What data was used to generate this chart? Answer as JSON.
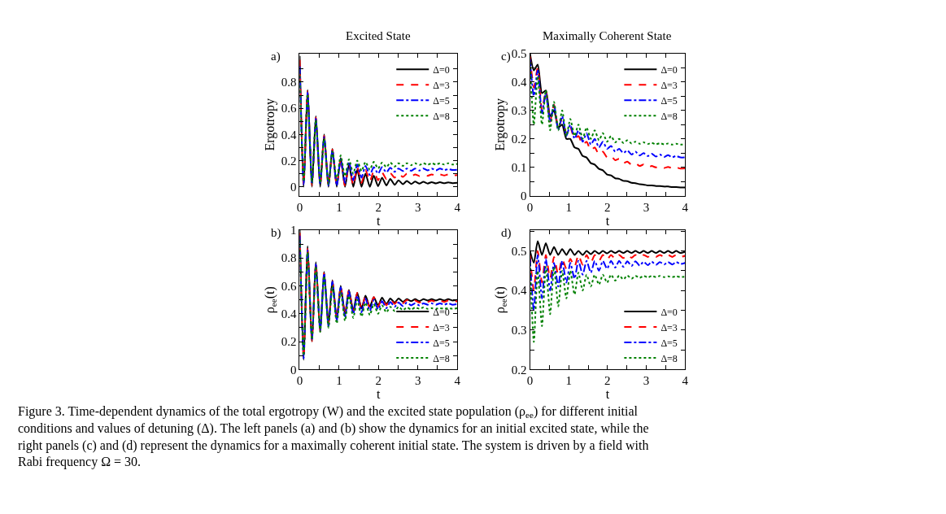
{
  "chart_data": [
    {
      "type": "line",
      "title": "Excited State",
      "xlabel": "t",
      "ylabel": "Ergotropy",
      "legend": "top right",
      "annotations": [
        "a)"
      ],
      "xlim": [
        0,
        4
      ],
      "xticks": [
        0,
        {
          "value": 0.5,
          "label": null
        },
        1,
        {
          "value": 1.5,
          "label": null
        },
        2,
        {
          "value": 2.5,
          "label": null
        },
        3,
        {
          "value": 3.5,
          "label": null
        },
        4
      ],
      "ylim": [
        -0.07,
        1.02
      ],
      "yticks": [
        0,
        {
          "value": 0.1,
          "label": null
        },
        0.2,
        {
          "value": 0.3,
          "label": null
        },
        0.4,
        {
          "value": 0.5,
          "label": null
        },
        0.6,
        {
          "value": 0.7,
          "label": null
        },
        0.8,
        {
          "value": 0.9,
          "label": null
        }
      ],
      "x": [
        0,
        0.1,
        0.2,
        0.31,
        0.41,
        0.52,
        0.62,
        0.73,
        0.83,
        0.94,
        1.04,
        1.15,
        1.25,
        1.36,
        1.46,
        1.57,
        1.67,
        1.78,
        1.88,
        1.99,
        2.09,
        2.2,
        2.3,
        2.41,
        2.51,
        2.62,
        2.72,
        2.83,
        2.93,
        3.04,
        3.14,
        3.25,
        3.35,
        3.46,
        3.56,
        3.67,
        3.77,
        3.88,
        4.0
      ],
      "series": [
        {
          "name": "Δ=0",
          "color": "#000000",
          "line_style": "solid",
          "values": [
            1.0,
            0,
            0.74,
            0,
            0.54,
            0,
            0.4,
            0,
            0.29,
            0,
            0.22,
            0,
            0.17,
            0,
            0.13,
            0,
            0.1,
            0,
            0.085,
            0.005,
            0.07,
            0.01,
            0.06,
            0.015,
            0.05,
            0.02,
            0.045,
            0.022,
            0.04,
            0.024,
            0.038,
            0.025,
            0.036,
            0.026,
            0.035,
            0.027,
            0.034,
            0.028,
            0.03
          ]
        },
        {
          "name": "Δ=3",
          "color": "#ff0000",
          "line_style": "dashed",
          "values": [
            0.97,
            0.01,
            0.73,
            0.01,
            0.53,
            0.01,
            0.39,
            0.005,
            0.285,
            0.005,
            0.215,
            0.005,
            0.18,
            0.01,
            0.15,
            0.03,
            0.13,
            0.04,
            0.12,
            0.05,
            0.11,
            0.06,
            0.105,
            0.07,
            0.1,
            0.075,
            0.1,
            0.08,
            0.095,
            0.082,
            0.095,
            0.084,
            0.095,
            0.085,
            0.095,
            0.086,
            0.095,
            0.087,
            0.09
          ]
        },
        {
          "name": "Δ=5",
          "color": "#0000ff",
          "line_style": "dashdot",
          "values": [
            0.92,
            0.02,
            0.72,
            0.02,
            0.52,
            0.02,
            0.38,
            0.01,
            0.28,
            0.01,
            0.21,
            0.03,
            0.19,
            0.05,
            0.17,
            0.07,
            0.16,
            0.09,
            0.15,
            0.1,
            0.15,
            0.11,
            0.145,
            0.115,
            0.14,
            0.12,
            0.14,
            0.122,
            0.14,
            0.124,
            0.14,
            0.125,
            0.14,
            0.126,
            0.14,
            0.127,
            0.135,
            0.128,
            0.13
          ]
        },
        {
          "name": "Δ=8",
          "color": "#008000",
          "line_style": "dotted",
          "values": [
            0.85,
            0.04,
            0.71,
            0.03,
            0.51,
            0.03,
            0.37,
            0.02,
            0.27,
            0.05,
            0.24,
            0.08,
            0.21,
            0.1,
            0.2,
            0.12,
            0.19,
            0.13,
            0.19,
            0.14,
            0.185,
            0.15,
            0.185,
            0.155,
            0.18,
            0.16,
            0.18,
            0.165,
            0.18,
            0.167,
            0.18,
            0.168,
            0.18,
            0.17,
            0.18,
            0.17,
            0.18,
            0.17,
            0.175
          ]
        }
      ]
    },
    {
      "type": "line",
      "title": "Maximally Coherent State",
      "xlabel": "t",
      "ylabel": "Ergotropy",
      "legend": "top right",
      "annotations": [
        "c)"
      ],
      "xlim": [
        0,
        4
      ],
      "xticks": [
        0,
        {
          "value": 0.5,
          "label": null
        },
        1,
        {
          "value": 1.5,
          "label": null
        },
        2,
        {
          "value": 2.5,
          "label": null
        },
        3,
        {
          "value": 3.5,
          "label": null
        },
        4
      ],
      "ylim": [
        0,
        0.5
      ],
      "yticks": [
        0,
        {
          "value": 0.05,
          "label": null
        },
        0.1,
        {
          "value": 0.15,
          "label": null
        },
        0.2,
        {
          "value": 0.25,
          "label": null
        },
        0.3,
        {
          "value": 0.35,
          "label": null
        },
        0.4,
        {
          "value": 0.45,
          "label": null
        },
        0.5
      ],
      "x": [
        0,
        0.1,
        0.2,
        0.31,
        0.41,
        0.52,
        0.62,
        0.73,
        0.83,
        0.94,
        1.04,
        1.15,
        1.25,
        1.36,
        1.46,
        1.57,
        1.67,
        1.78,
        1.88,
        1.99,
        2.09,
        2.2,
        2.3,
        2.41,
        2.51,
        2.62,
        2.72,
        2.83,
        2.93,
        3.04,
        3.14,
        3.25,
        3.35,
        3.46,
        3.56,
        3.67,
        3.77,
        3.88,
        4.0
      ],
      "series": [
        {
          "name": "Δ=0",
          "color": "#000000",
          "line_style": "solid",
          "values": [
            0.5,
            0.44,
            0.46,
            0.36,
            0.37,
            0.28,
            0.3,
            0.24,
            0.25,
            0.2,
            0.2,
            0.17,
            0.165,
            0.14,
            0.135,
            0.115,
            0.11,
            0.095,
            0.09,
            0.075,
            0.072,
            0.062,
            0.06,
            0.053,
            0.052,
            0.046,
            0.045,
            0.041,
            0.04,
            0.037,
            0.037,
            0.035,
            0.035,
            0.033,
            0.033,
            0.031,
            0.031,
            0.03,
            0.03
          ]
        },
        {
          "name": "Δ=3",
          "color": "#ff0000",
          "line_style": "dashed",
          "values": [
            0.49,
            0.38,
            0.45,
            0.3,
            0.37,
            0.26,
            0.32,
            0.24,
            0.27,
            0.22,
            0.24,
            0.2,
            0.21,
            0.18,
            0.19,
            0.16,
            0.17,
            0.145,
            0.155,
            0.135,
            0.14,
            0.125,
            0.13,
            0.115,
            0.12,
            0.11,
            0.115,
            0.105,
            0.11,
            0.1,
            0.105,
            0.1,
            0.105,
            0.098,
            0.102,
            0.097,
            0.1,
            0.096,
            0.097
          ]
        },
        {
          "name": "Δ=5",
          "color": "#0000ff",
          "line_style": "dashdot",
          "values": [
            0.48,
            0.35,
            0.44,
            0.29,
            0.36,
            0.26,
            0.32,
            0.23,
            0.28,
            0.21,
            0.25,
            0.2,
            0.23,
            0.19,
            0.22,
            0.18,
            0.2,
            0.17,
            0.19,
            0.165,
            0.175,
            0.155,
            0.165,
            0.15,
            0.16,
            0.145,
            0.155,
            0.142,
            0.15,
            0.14,
            0.148,
            0.138,
            0.145,
            0.137,
            0.143,
            0.136,
            0.14,
            0.135,
            0.135
          ]
        },
        {
          "name": "Δ=8",
          "color": "#008000",
          "line_style": "dotted",
          "values": [
            0.47,
            0.25,
            0.42,
            0.25,
            0.37,
            0.23,
            0.33,
            0.23,
            0.3,
            0.21,
            0.27,
            0.21,
            0.25,
            0.2,
            0.24,
            0.2,
            0.23,
            0.195,
            0.22,
            0.19,
            0.21,
            0.188,
            0.2,
            0.186,
            0.195,
            0.184,
            0.19,
            0.183,
            0.188,
            0.182,
            0.186,
            0.181,
            0.185,
            0.181,
            0.184,
            0.18,
            0.183,
            0.18,
            0.18
          ]
        }
      ]
    },
    {
      "type": "line",
      "xlabel": "t",
      "ylabel": "ρ$_{ee}$(t)",
      "legend": "bottom right",
      "annotations": [
        "b)"
      ],
      "xlim": [
        0,
        4
      ],
      "xticks": [
        0,
        {
          "value": 0.5,
          "label": null
        },
        1,
        {
          "value": 1.5,
          "label": null
        },
        2,
        {
          "value": 2.5,
          "label": null
        },
        3,
        {
          "value": 3.5,
          "label": null
        },
        4
      ],
      "ylim": [
        0,
        1
      ],
      "yticks": [
        0,
        {
          "value": 0.1,
          "label": null
        },
        0.2,
        {
          "value": 0.3,
          "label": null
        },
        0.4,
        {
          "value": 0.5,
          "label": null
        },
        0.6,
        {
          "value": 0.7,
          "label": null
        },
        0.8,
        {
          "value": 0.9,
          "label": null
        },
        1
      ],
      "x": [
        0,
        0.1,
        0.2,
        0.31,
        0.41,
        0.52,
        0.62,
        0.73,
        0.83,
        0.94,
        1.04,
        1.15,
        1.25,
        1.36,
        1.46,
        1.57,
        1.67,
        1.78,
        1.88,
        1.99,
        2.09,
        2.2,
        2.3,
        2.41,
        2.51,
        2.62,
        2.72,
        2.83,
        2.93,
        3.04,
        3.14,
        3.25,
        3.35,
        3.46,
        3.56,
        3.67,
        3.77,
        3.88,
        4.0
      ],
      "series": [
        {
          "name": "Δ=0",
          "color": "#000000",
          "line_style": "solid",
          "values": [
            1,
            0.07,
            0.885,
            0.2,
            0.77,
            0.27,
            0.7,
            0.32,
            0.64,
            0.36,
            0.6,
            0.4,
            0.57,
            0.42,
            0.55,
            0.44,
            0.53,
            0.45,
            0.52,
            0.46,
            0.515,
            0.47,
            0.51,
            0.48,
            0.51,
            0.485,
            0.505,
            0.49,
            0.505,
            0.49,
            0.505,
            0.495,
            0.505,
            0.495,
            0.505,
            0.495,
            0.505,
            0.495,
            0.5
          ]
        },
        {
          "name": "Δ=3",
          "color": "#ff0000",
          "line_style": "dashed",
          "values": [
            0.98,
            0.075,
            0.865,
            0.205,
            0.765,
            0.275,
            0.695,
            0.325,
            0.635,
            0.365,
            0.595,
            0.39,
            0.57,
            0.41,
            0.55,
            0.43,
            0.53,
            0.44,
            0.52,
            0.45,
            0.51,
            0.46,
            0.505,
            0.47,
            0.5,
            0.475,
            0.5,
            0.48,
            0.495,
            0.48,
            0.495,
            0.485,
            0.495,
            0.485,
            0.495,
            0.485,
            0.495,
            0.485,
            0.49
          ]
        },
        {
          "name": "Δ=5",
          "color": "#0000ff",
          "line_style": "dashdot",
          "values": [
            0.96,
            0.08,
            0.855,
            0.21,
            0.755,
            0.28,
            0.69,
            0.31,
            0.63,
            0.35,
            0.59,
            0.38,
            0.56,
            0.4,
            0.53,
            0.41,
            0.51,
            0.42,
            0.5,
            0.43,
            0.49,
            0.44,
            0.485,
            0.45,
            0.48,
            0.455,
            0.48,
            0.46,
            0.475,
            0.46,
            0.475,
            0.465,
            0.475,
            0.465,
            0.475,
            0.465,
            0.475,
            0.465,
            0.47
          ]
        },
        {
          "name": "Δ=8",
          "color": "#008000",
          "line_style": "dotted",
          "values": [
            0.93,
            0.1,
            0.84,
            0.215,
            0.74,
            0.27,
            0.67,
            0.3,
            0.6,
            0.33,
            0.56,
            0.35,
            0.53,
            0.37,
            0.5,
            0.38,
            0.48,
            0.39,
            0.47,
            0.4,
            0.46,
            0.41,
            0.45,
            0.42,
            0.45,
            0.425,
            0.445,
            0.43,
            0.445,
            0.435,
            0.445,
            0.435,
            0.44,
            0.435,
            0.44,
            0.435,
            0.44,
            0.435,
            0.44
          ]
        }
      ]
    },
    {
      "type": "line",
      "xlabel": "t",
      "ylabel": "ρ$_{ee}$(t)",
      "legend": "bottom right",
      "annotations": [
        "d)",
        "Figure 3. Time-dependent dynamics of the total ergotropy (W) and the excited state population (ρ$_{ee}$) for different initial conditions and values of detuning (Δ). The left panels (a) and (b) show the dynamics for an initial excited state, while the right panels (c) and (d) represent the dynamics for a maximally coherent initial state. The system is driven by a field with Rabi frequency Ω = 30."
      ],
      "xlim": [
        0,
        4
      ],
      "xticks": [
        0,
        {
          "value": 0.5,
          "label": null
        },
        1,
        {
          "value": 1.5,
          "label": null
        },
        2,
        {
          "value": 2.5,
          "label": null
        },
        3,
        {
          "value": 3.5,
          "label": null
        },
        4
      ],
      "ylim": [
        0.2,
        0.553
      ],
      "yticks": [
        0.2,
        {
          "value": 0.25,
          "label": null
        },
        0.3,
        {
          "value": 0.35,
          "label": null
        },
        0.4,
        {
          "value": 0.45,
          "label": null
        },
        0.5,
        {
          "value": 0.55,
          "label": null
        }
      ],
      "x": [
        0,
        0.1,
        0.2,
        0.31,
        0.41,
        0.52,
        0.62,
        0.73,
        0.83,
        0.94,
        1.04,
        1.15,
        1.25,
        1.36,
        1.46,
        1.57,
        1.67,
        1.78,
        1.88,
        1.99,
        2.09,
        2.2,
        2.3,
        2.41,
        2.51,
        2.62,
        2.72,
        2.83,
        2.93,
        3.04,
        3.14,
        3.25,
        3.35,
        3.46,
        3.56,
        3.67,
        3.77,
        3.88,
        4.0
      ],
      "series": [
        {
          "name": "Δ=0",
          "color": "#000000",
          "line_style": "solid",
          "values": [
            0.5,
            0.47,
            0.525,
            0.49,
            0.52,
            0.49,
            0.51,
            0.49,
            0.505,
            0.49,
            0.505,
            0.49,
            0.5,
            0.49,
            0.5,
            0.492,
            0.5,
            0.493,
            0.5,
            0.494,
            0.5,
            0.495,
            0.5,
            0.495,
            0.5,
            0.495,
            0.5,
            0.495,
            0.5,
            0.495,
            0.5,
            0.495,
            0.5,
            0.495,
            0.5,
            0.495,
            0.5,
            0.495,
            0.498
          ]
        },
        {
          "name": "Δ=3",
          "color": "#ff0000",
          "line_style": "dashed",
          "values": [
            0.49,
            0.4,
            0.5,
            0.42,
            0.49,
            0.43,
            0.485,
            0.44,
            0.48,
            0.455,
            0.48,
            0.46,
            0.49,
            0.465,
            0.49,
            0.47,
            0.49,
            0.475,
            0.49,
            0.478,
            0.49,
            0.48,
            0.49,
            0.482,
            0.49,
            0.483,
            0.49,
            0.484,
            0.49,
            0.485,
            0.49,
            0.485,
            0.49,
            0.485,
            0.49,
            0.485,
            0.49,
            0.485,
            0.488
          ]
        },
        {
          "name": "Δ=5",
          "color": "#0000ff",
          "line_style": "dashdot",
          "values": [
            0.48,
            0.35,
            0.49,
            0.38,
            0.48,
            0.4,
            0.47,
            0.41,
            0.475,
            0.42,
            0.47,
            0.43,
            0.475,
            0.44,
            0.475,
            0.445,
            0.475,
            0.45,
            0.475,
            0.455,
            0.475,
            0.458,
            0.475,
            0.46,
            0.474,
            0.462,
            0.474,
            0.463,
            0.473,
            0.464,
            0.473,
            0.465,
            0.472,
            0.466,
            0.472,
            0.466,
            0.472,
            0.467,
            0.47
          ]
        },
        {
          "name": "Δ=8",
          "color": "#008000",
          "line_style": "dotted",
          "values": [
            0.47,
            0.27,
            0.45,
            0.31,
            0.46,
            0.34,
            0.46,
            0.36,
            0.45,
            0.38,
            0.45,
            0.39,
            0.445,
            0.4,
            0.44,
            0.41,
            0.44,
            0.415,
            0.44,
            0.42,
            0.44,
            0.425,
            0.438,
            0.428,
            0.438,
            0.43,
            0.437,
            0.432,
            0.437,
            0.433,
            0.437,
            0.434,
            0.437,
            0.434,
            0.436,
            0.434,
            0.436,
            0.434,
            0.435
          ]
        }
      ]
    }
  ]
}
